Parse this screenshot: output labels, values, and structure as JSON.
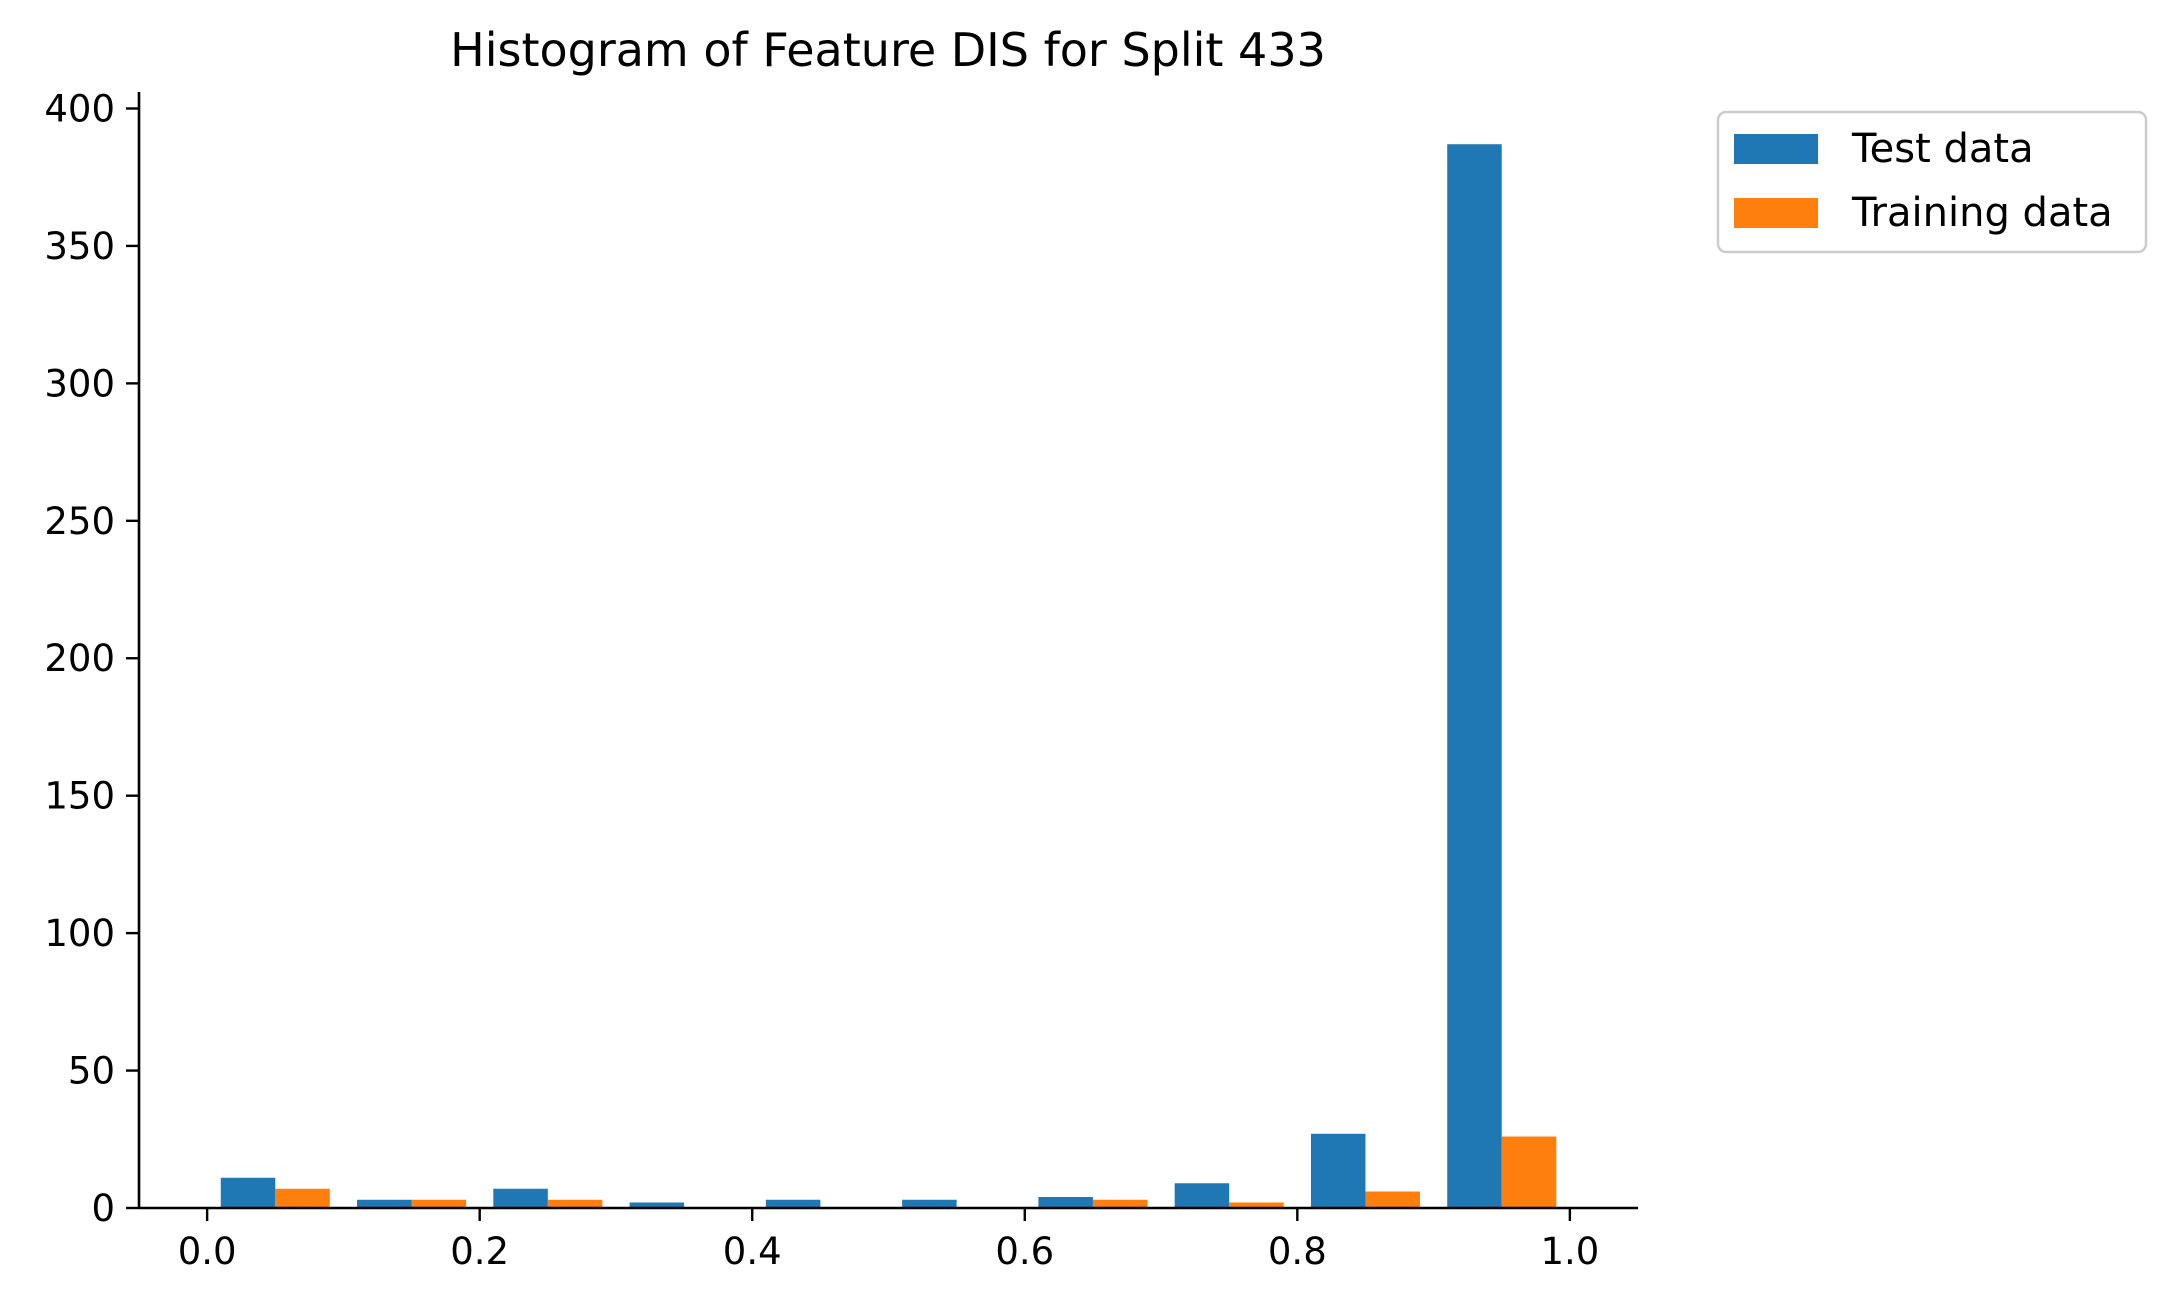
{
  "chart_data": {
    "type": "bar",
    "title": "Histogram of Feature DIS for Split 433",
    "xlabel": "",
    "ylabel": "",
    "xlim": [
      -0.05,
      1.05
    ],
    "ylim": [
      0,
      406
    ],
    "xticks": [
      0.0,
      0.2,
      0.4,
      0.6,
      0.8,
      1.0
    ],
    "xtick_labels": [
      "0.0",
      "0.2",
      "0.4",
      "0.6",
      "0.8",
      "1.0"
    ],
    "yticks": [
      0,
      50,
      100,
      150,
      200,
      250,
      300,
      350,
      400
    ],
    "ytick_labels": [
      "0",
      "50",
      "100",
      "150",
      "200",
      "250",
      "300",
      "350",
      "400"
    ],
    "bin_edges": [
      0.0,
      0.1,
      0.2,
      0.3,
      0.4,
      0.5,
      0.6,
      0.7,
      0.8,
      0.9,
      1.0
    ],
    "legend_position": "outside-top-right",
    "grid": false,
    "series": [
      {
        "name": "Test data",
        "color": "#1f77b4",
        "values": [
          11,
          3,
          7,
          2,
          3,
          3,
          4,
          9,
          27,
          387
        ]
      },
      {
        "name": "Training data",
        "color": "#ff7f0e",
        "values": [
          7,
          3,
          3,
          0,
          0,
          0,
          3,
          2,
          6,
          26
        ]
      }
    ]
  }
}
